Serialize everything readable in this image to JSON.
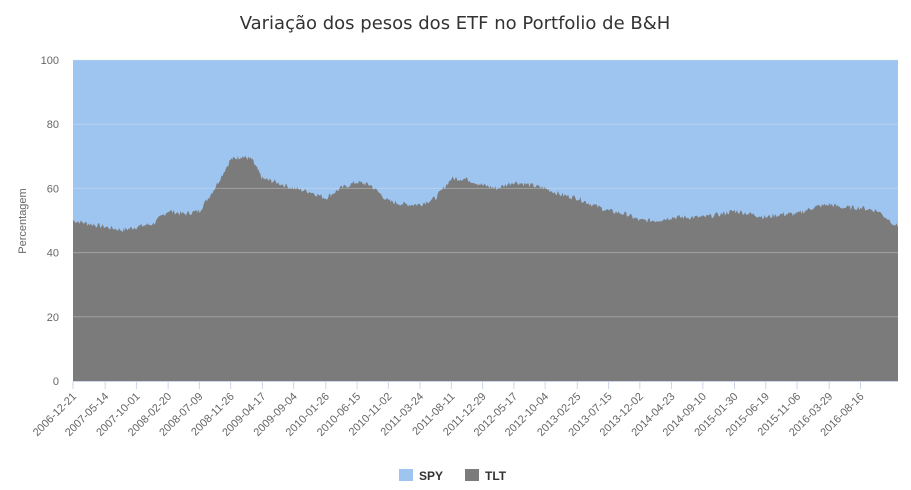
{
  "chart_data": {
    "type": "area",
    "stacked": "percent",
    "title": "Variação dos pesos dos ETF no Portfolio de B&H",
    "xlabel": "",
    "ylabel": "Percentagem",
    "ylim": [
      0,
      100
    ],
    "y_ticks": [
      0,
      20,
      40,
      60,
      80,
      100
    ],
    "x_range": [
      "2006-12-21",
      "2017-01-31"
    ],
    "x_ticks": [
      "2006-12-21",
      "2007-05-14",
      "2007-10-01",
      "2008-02-20",
      "2008-07-09",
      "2008-11-26",
      "2009-04-17",
      "2009-09-04",
      "2010-01-26",
      "2010-06-15",
      "2010-11-02",
      "2011-03-24",
      "2011-08-11",
      "2011-12-29",
      "2012-05-17",
      "2012-10-04",
      "2013-02-25",
      "2013-07-15",
      "2013-12-02",
      "2014-04-23",
      "2014-09-10",
      "2015-01-30",
      "2015-06-19",
      "2015-11-06",
      "2016-03-29",
      "2016-08-16"
    ],
    "legend_position": "bottom-center",
    "grid": true,
    "series": [
      {
        "name": "SPY",
        "color": "#9ec5f0",
        "values": "complement of TLT (100 - TLT)"
      },
      {
        "name": "TLT",
        "color": "#7b7b7b",
        "x": [
          "2006-12-21",
          "2007-03-01",
          "2007-05-14",
          "2007-08-01",
          "2007-10-01",
          "2007-12-15",
          "2008-02-20",
          "2008-05-01",
          "2008-07-09",
          "2008-09-15",
          "2008-11-26",
          "2009-01-15",
          "2009-03-01",
          "2009-04-17",
          "2009-06-15",
          "2009-09-04",
          "2009-11-15",
          "2010-01-26",
          "2010-04-01",
          "2010-06-15",
          "2010-08-15",
          "2010-11-02",
          "2011-01-15",
          "2011-03-24",
          "2011-06-01",
          "2011-08-11",
          "2011-10-15",
          "2011-12-29",
          "2012-03-01",
          "2012-05-17",
          "2012-08-01",
          "2012-10-04",
          "2012-12-15",
          "2013-02-25",
          "2013-05-01",
          "2013-07-15",
          "2013-10-01",
          "2013-12-02",
          "2014-02-15",
          "2014-04-23",
          "2014-07-01",
          "2014-09-10",
          "2014-12-01",
          "2015-01-30",
          "2015-04-15",
          "2015-06-19",
          "2015-09-01",
          "2015-11-06",
          "2016-01-15",
          "2016-03-29",
          "2016-06-01",
          "2016-08-16",
          "2016-11-01",
          "2017-01-31"
        ],
        "values": [
          50,
          49,
          48,
          47,
          48,
          49,
          53,
          52,
          53,
          60,
          69,
          70,
          69,
          63,
          62,
          60,
          59,
          57,
          60,
          62,
          61,
          56,
          55,
          55,
          57,
          63,
          63,
          61,
          60,
          62,
          61,
          60,
          58,
          57,
          55,
          53,
          52,
          50,
          50,
          51,
          51,
          51,
          52,
          53,
          52,
          51,
          52,
          52,
          54,
          55,
          54,
          54,
          53,
          48
        ]
      }
    ]
  }
}
